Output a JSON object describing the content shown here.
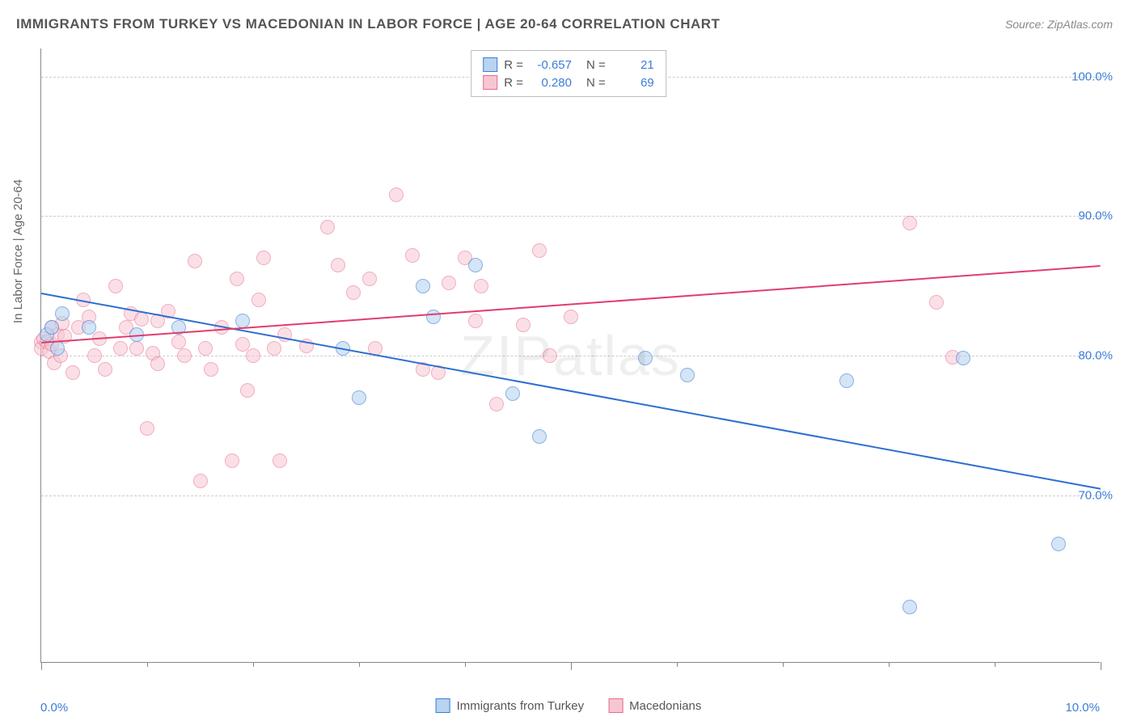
{
  "title": "IMMIGRANTS FROM TURKEY VS MACEDONIAN IN LABOR FORCE | AGE 20-64 CORRELATION CHART",
  "source": "Source: ZipAtlas.com",
  "watermark": "ZIPatlas",
  "ylabel": "In Labor Force | Age 20-64",
  "chart": {
    "type": "scatter",
    "background_color": "#ffffff",
    "grid_color": "#cccccc",
    "axis_color": "#888888",
    "tick_label_color": "#3b7dd8",
    "xlim": [
      0.0,
      10.0
    ],
    "ylim": [
      58.0,
      102.0
    ],
    "y_ticks": [
      {
        "val": 70.0,
        "label": "70.0%"
      },
      {
        "val": 80.0,
        "label": "80.0%"
      },
      {
        "val": 90.0,
        "label": "90.0%"
      },
      {
        "val": 100.0,
        "label": "100.0%"
      }
    ],
    "x_ticks_major": [
      0.0,
      5.0,
      10.0
    ],
    "x_ticks_minor": [
      1.0,
      2.0,
      3.0,
      4.0,
      6.0,
      7.0,
      8.0,
      9.0
    ],
    "x_labels": [
      {
        "val": 0.0,
        "label": "0.0%"
      },
      {
        "val": 10.0,
        "label": "10.0%"
      }
    ],
    "marker_radius": 9,
    "marker_border_width": 1.2,
    "series": [
      {
        "name": "Immigrants from Turkey",
        "fill": "#b8d4f0",
        "stroke": "#3b7dd8",
        "fill_opacity": 0.6,
        "r": -0.657,
        "n": 21,
        "trend": {
          "x0": 0.0,
          "y0": 84.5,
          "x1": 10.0,
          "y1": 70.5,
          "color": "#2e6fd0",
          "width": 2
        },
        "points": [
          [
            0.05,
            81.5
          ],
          [
            0.1,
            82.0
          ],
          [
            0.15,
            80.5
          ],
          [
            0.2,
            83.0
          ],
          [
            0.45,
            82.0
          ],
          [
            0.9,
            81.5
          ],
          [
            1.3,
            82.0
          ],
          [
            1.9,
            82.5
          ],
          [
            2.85,
            80.5
          ],
          [
            3.0,
            77.0
          ],
          [
            3.6,
            85.0
          ],
          [
            3.7,
            82.8
          ],
          [
            4.1,
            86.5
          ],
          [
            4.45,
            77.3
          ],
          [
            4.7,
            74.2
          ],
          [
            5.7,
            79.8
          ],
          [
            6.1,
            78.6
          ],
          [
            7.6,
            78.2
          ],
          [
            8.2,
            62.0
          ],
          [
            8.7,
            79.8
          ],
          [
            9.6,
            66.5
          ]
        ]
      },
      {
        "name": "Macedonians",
        "fill": "#f6c7d2",
        "stroke": "#e86b8a",
        "fill_opacity": 0.55,
        "r": 0.28,
        "n": 69,
        "trend": {
          "x0": 0.0,
          "y0": 81.0,
          "x1": 10.0,
          "y1": 86.5,
          "color": "#e23d6d",
          "width": 2
        },
        "points": [
          [
            0.0,
            81.0
          ],
          [
            0.0,
            80.5
          ],
          [
            0.02,
            81.2
          ],
          [
            0.05,
            81.0
          ],
          [
            0.08,
            80.3
          ],
          [
            0.1,
            82.0
          ],
          [
            0.1,
            80.8
          ],
          [
            0.12,
            79.5
          ],
          [
            0.15,
            81.5
          ],
          [
            0.18,
            80.0
          ],
          [
            0.2,
            82.3
          ],
          [
            0.22,
            81.4
          ],
          [
            0.3,
            78.8
          ],
          [
            0.35,
            82.0
          ],
          [
            0.4,
            84.0
          ],
          [
            0.45,
            82.8
          ],
          [
            0.5,
            80.0
          ],
          [
            0.55,
            81.2
          ],
          [
            0.6,
            79.0
          ],
          [
            0.7,
            85.0
          ],
          [
            0.75,
            80.5
          ],
          [
            0.8,
            82.0
          ],
          [
            0.85,
            83.0
          ],
          [
            0.9,
            80.5
          ],
          [
            0.95,
            82.6
          ],
          [
            1.0,
            74.8
          ],
          [
            1.05,
            80.2
          ],
          [
            1.1,
            79.4
          ],
          [
            1.1,
            82.5
          ],
          [
            1.2,
            83.2
          ],
          [
            1.3,
            81.0
          ],
          [
            1.35,
            80.0
          ],
          [
            1.45,
            86.8
          ],
          [
            1.5,
            71.0
          ],
          [
            1.55,
            80.5
          ],
          [
            1.6,
            79.0
          ],
          [
            1.7,
            82.0
          ],
          [
            1.8,
            72.5
          ],
          [
            1.85,
            85.5
          ],
          [
            1.9,
            80.8
          ],
          [
            1.95,
            77.5
          ],
          [
            2.0,
            80.0
          ],
          [
            2.05,
            84.0
          ],
          [
            2.1,
            87.0
          ],
          [
            2.2,
            80.5
          ],
          [
            2.25,
            72.5
          ],
          [
            2.3,
            81.5
          ],
          [
            2.5,
            80.7
          ],
          [
            2.7,
            89.2
          ],
          [
            2.8,
            86.5
          ],
          [
            2.95,
            84.5
          ],
          [
            3.1,
            85.5
          ],
          [
            3.15,
            80.5
          ],
          [
            3.35,
            91.5
          ],
          [
            3.5,
            87.2
          ],
          [
            3.6,
            79.0
          ],
          [
            3.75,
            78.8
          ],
          [
            3.85,
            85.2
          ],
          [
            4.0,
            87.0
          ],
          [
            4.1,
            82.5
          ],
          [
            4.15,
            85.0
          ],
          [
            4.3,
            76.5
          ],
          [
            4.55,
            82.2
          ],
          [
            4.7,
            87.5
          ],
          [
            4.8,
            80.0
          ],
          [
            5.0,
            82.8
          ],
          [
            8.2,
            89.5
          ],
          [
            8.45,
            83.8
          ],
          [
            8.6,
            79.9
          ]
        ]
      }
    ]
  },
  "legend_top": {
    "r_label": "R =",
    "n_label": "N ="
  },
  "legend_bottom": [
    {
      "label": "Immigrants from Turkey",
      "fill": "#b8d4f0",
      "stroke": "#3b7dd8"
    },
    {
      "label": "Macedonians",
      "fill": "#f6c7d2",
      "stroke": "#e86b8a"
    }
  ]
}
